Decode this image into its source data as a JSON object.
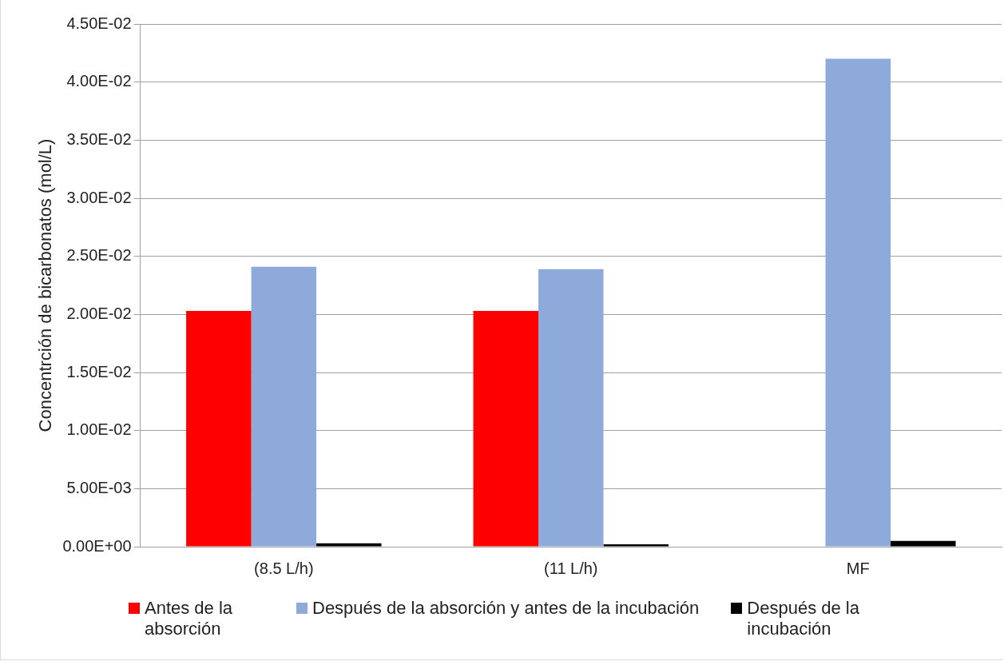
{
  "chart_data": {
    "type": "bar",
    "ylabel": "Concentrción de bicarbonatos (mol/L)",
    "categories": [
      "(8.5 L/h)",
      "(11 L/h)",
      "MF"
    ],
    "series": [
      {
        "name": "Antes de la absorción",
        "color": "#ff0000",
        "values": [
          0.0203,
          0.0203,
          0
        ]
      },
      {
        "name": "Después de la absorción y antes de la incubación",
        "color": "#8eaadb",
        "values": [
          0.0241,
          0.0239,
          0.042
        ]
      },
      {
        "name": "Después de la incubación",
        "color": "#000000",
        "values": [
          0.0003,
          0.0002,
          0.0005
        ]
      }
    ],
    "ylim": [
      0,
      0.045
    ],
    "yticks": [
      {
        "value": 0,
        "label": "0.00E+00"
      },
      {
        "value": 0.005,
        "label": "5.00E-03"
      },
      {
        "value": 0.01,
        "label": "1.00E-02"
      },
      {
        "value": 0.015,
        "label": "1.50E-02"
      },
      {
        "value": 0.02,
        "label": "2.00E-02"
      },
      {
        "value": 0.025,
        "label": "2.50E-02"
      },
      {
        "value": 0.03,
        "label": "3.00E-02"
      },
      {
        "value": 0.035,
        "label": "3.50E-02"
      },
      {
        "value": 0.04,
        "label": "4.00E-02"
      },
      {
        "value": 0.045,
        "label": "4.50E-02"
      }
    ],
    "grid": "y",
    "legend": "bottom"
  }
}
